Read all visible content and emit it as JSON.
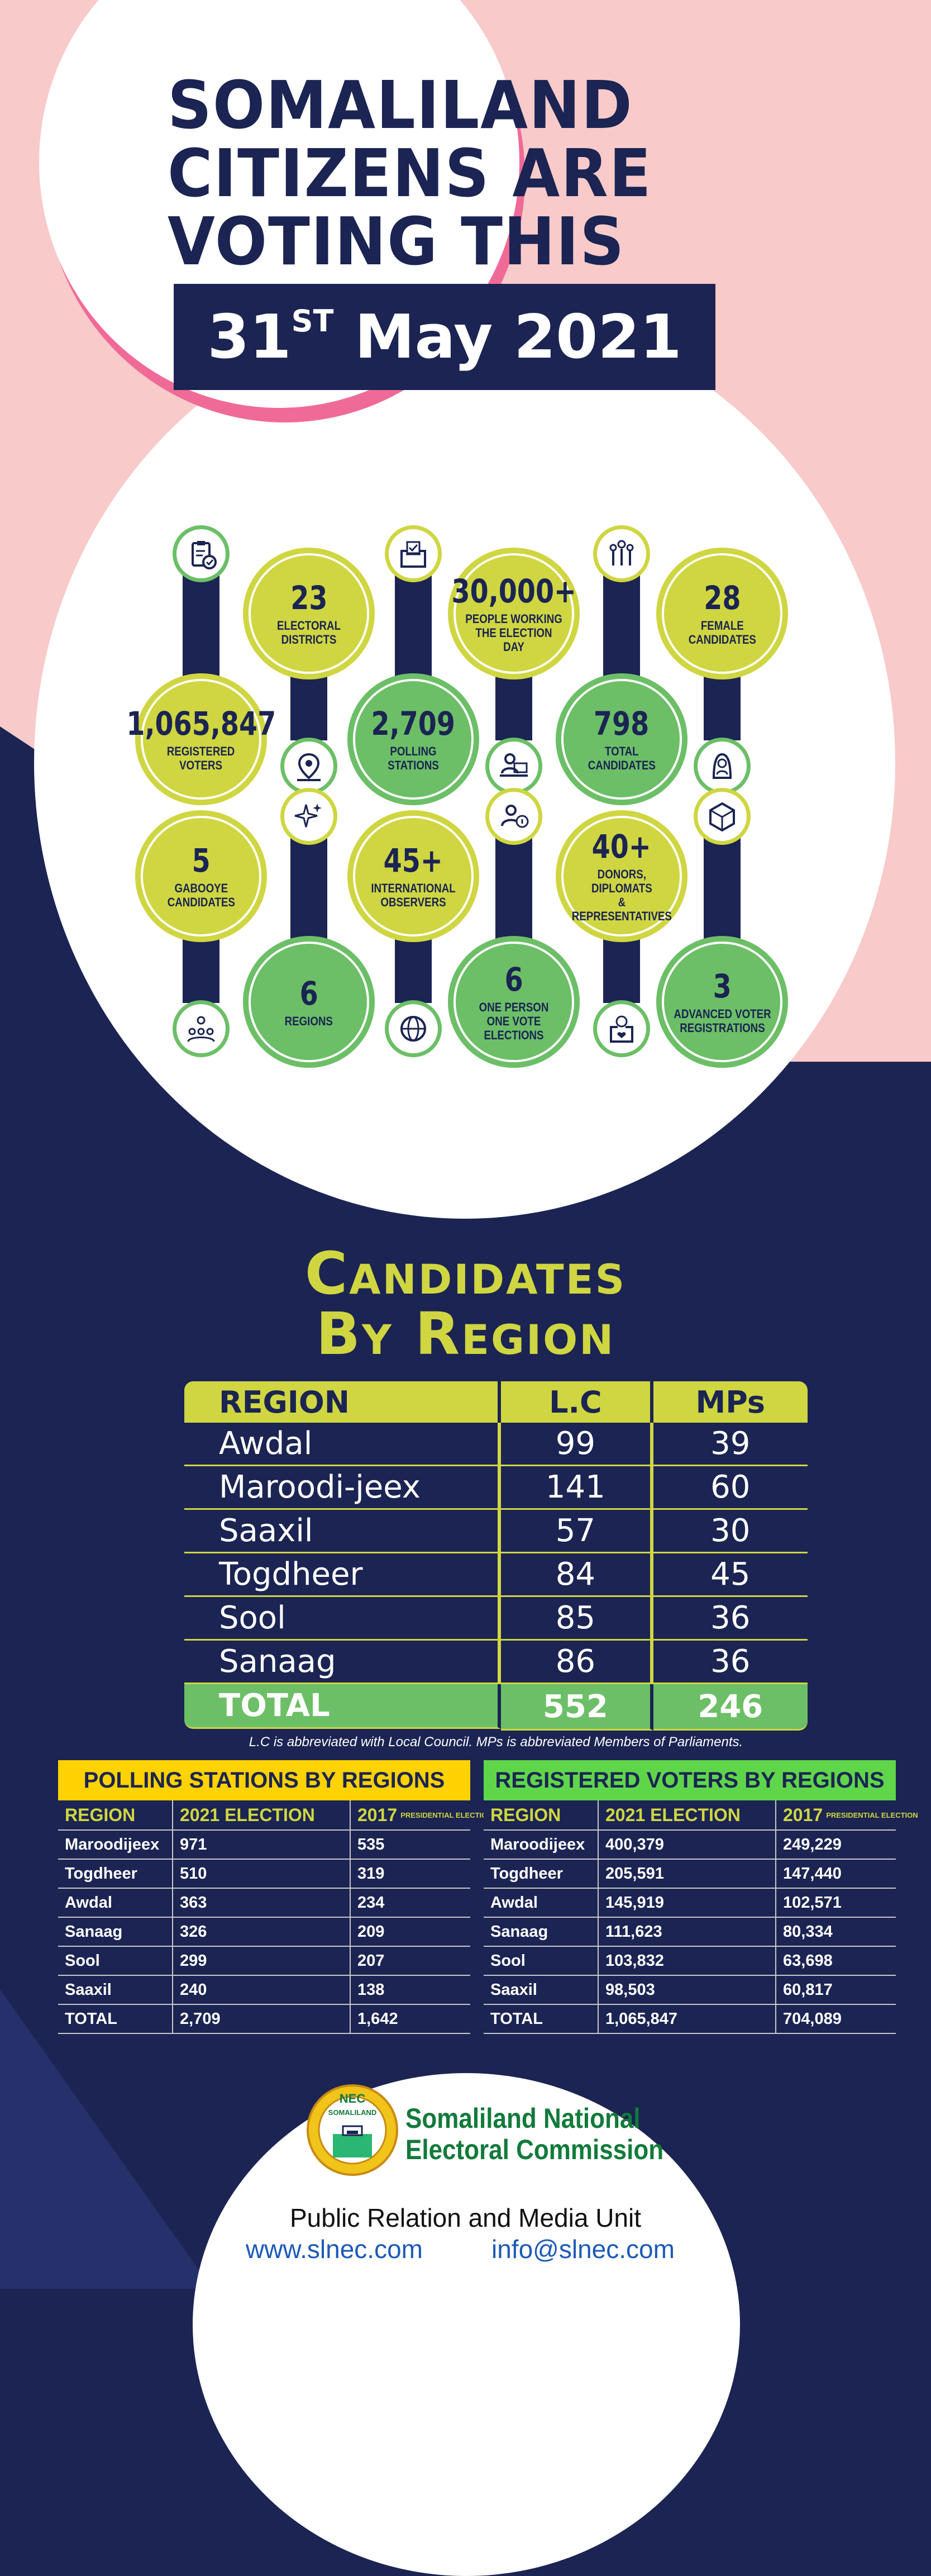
{
  "header": {
    "title_lines": [
      "SOMALILAND",
      "CITIZENS ARE",
      "VOTING THIS"
    ],
    "date_day": "31",
    "date_suffix": "ST",
    "date_rest": " May 2021"
  },
  "stats": [
    {
      "value": "1,065,847",
      "label": "REGISTERED\nVOTERS",
      "icon": "clipboard-check-icon"
    },
    {
      "value": "23",
      "label": "ELECTORAL\nDISTRICTS",
      "icon": "map-pin-icon"
    },
    {
      "value": "2,709",
      "label": "POLLING\nSTATIONS",
      "icon": "ballot-box-icon"
    },
    {
      "value": "30,000+",
      "label": "PEOPLE WORKING\nTHE ELECTION DAY",
      "icon": "worker-desk-icon"
    },
    {
      "value": "798",
      "label": "TOTAL\nCANDIDATES",
      "icon": "raised-hands-icon"
    },
    {
      "value": "28",
      "label": "FEMALE\nCANDIDATES",
      "icon": "female-candidate-icon"
    },
    {
      "value": "5",
      "label": "GABOOYE\nCANDIDATES",
      "icon": "audience-icon"
    },
    {
      "value": "6",
      "label": "REGIONS",
      "icon": "sparkle-icon"
    },
    {
      "value": "45+",
      "label": "INTERNATIONAL\nOBSERVERS",
      "icon": "globe-icon"
    },
    {
      "value": "6",
      "label": "ONE PERSON\nONE VOTE ELECTIONS",
      "icon": "person-info-icon"
    },
    {
      "value": "40+",
      "label": "DONORS, DIPLOMATS\n& REPRESENTATIVES",
      "icon": "donation-box-icon"
    },
    {
      "value": "3",
      "label": "ADVANCED VOTER\nREGISTRATIONS",
      "icon": "cube-icon"
    }
  ],
  "candidates": {
    "title_line1": "Candidates",
    "title_line2": "By Region",
    "headers": [
      "REGION",
      "L.C",
      "MPs"
    ],
    "rows": [
      [
        "Awdal",
        "99",
        "39"
      ],
      [
        "Maroodi-jeex",
        "141",
        "60"
      ],
      [
        "Saaxil",
        "57",
        "30"
      ],
      [
        "Togdheer",
        "84",
        "45"
      ],
      [
        "Sool",
        "85",
        "36"
      ],
      [
        "Sanaag",
        "86",
        "36"
      ]
    ],
    "total": [
      "TOTAL",
      "552",
      "246"
    ],
    "note": "L.C is abbreviated with Local Council. MPs is abbreviated Members of Parliaments."
  },
  "polling": {
    "title": "POLLING STATIONS BY REGIONS",
    "headers": [
      "REGION",
      "2021 ELECTION",
      "2017"
    ],
    "header_note": "PRESIDENTIAL ELECTION",
    "rows": [
      [
        "Maroodijeex",
        "971",
        "535"
      ],
      [
        "Togdheer",
        "510",
        "319"
      ],
      [
        "Awdal",
        "363",
        "234"
      ],
      [
        "Sanaag",
        "326",
        "209"
      ],
      [
        "Sool",
        "299",
        "207"
      ],
      [
        "Saaxil",
        "240",
        "138"
      ],
      [
        "TOTAL",
        "2,709",
        "1,642"
      ]
    ],
    "title_color": "#ffd200"
  },
  "voters": {
    "title": "REGISTERED VOTERS BY REGIONS",
    "headers": [
      "REGION",
      "2021 ELECTION",
      "2017"
    ],
    "header_note": "PRESIDENTIAL ELECTION",
    "rows": [
      [
        "Maroodijeex",
        "400,379",
        "249,229"
      ],
      [
        "Togdheer",
        "205,591",
        "147,440"
      ],
      [
        "Awdal",
        "145,919",
        "102,571"
      ],
      [
        "Sanaag",
        "111,623",
        "80,334"
      ],
      [
        "Sool",
        "103,832",
        "63,698"
      ],
      [
        "Saaxil",
        "98,503",
        "60,817"
      ],
      [
        "TOTAL",
        "1,065,847",
        "704,089"
      ]
    ],
    "title_color": "#5fd64a"
  },
  "footer": {
    "logo_text": "NEC",
    "logo_ring": "SOMALILAND",
    "org_line1": "Somaliland National",
    "org_line2": "Electoral Commission",
    "unit": "Public Relation and Media Unit",
    "website": "www.slnec.com",
    "email": "info@slnec.com"
  },
  "colors": {
    "navy": "#1b2452",
    "lime": "#cfd641",
    "green": "#6cbf67",
    "pink": "#f8caca",
    "magenta": "#f06a98"
  }
}
